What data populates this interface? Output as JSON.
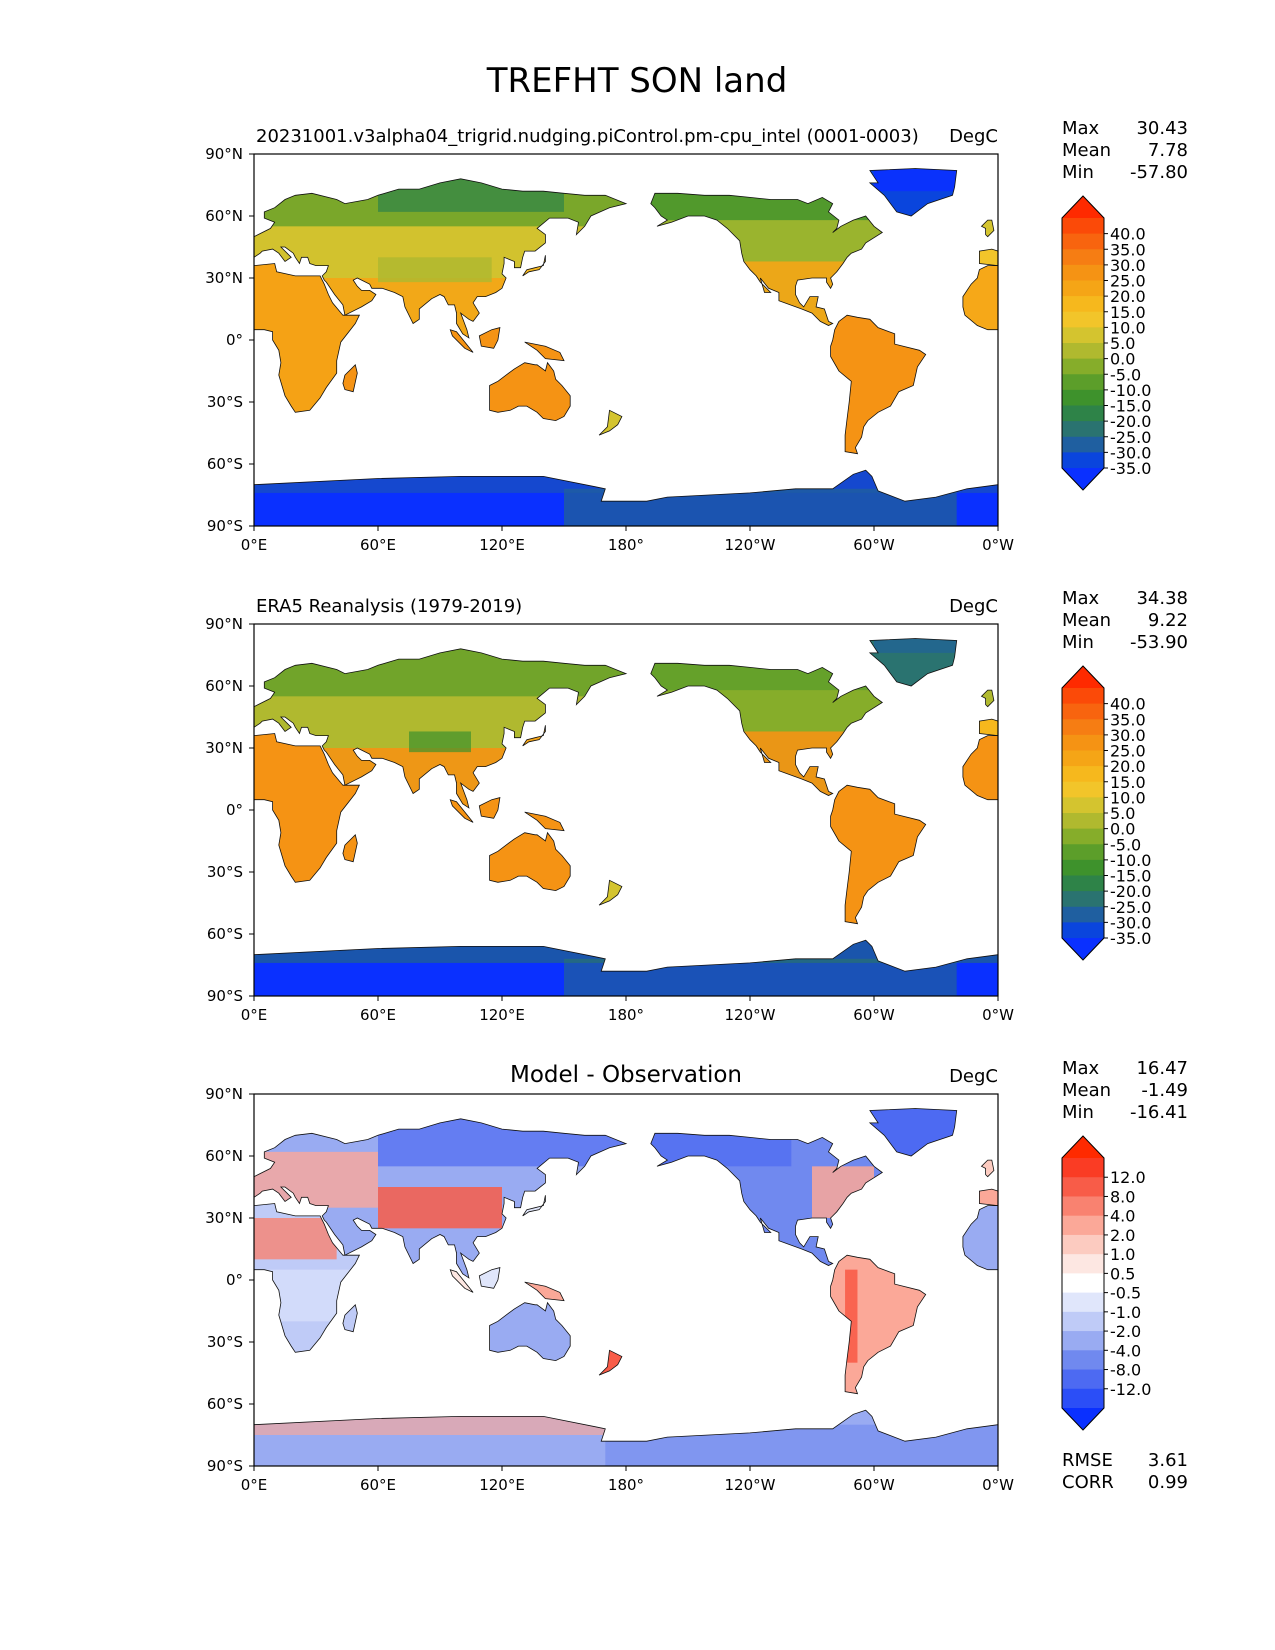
{
  "title": "TREFHT SON land",
  "lat_ticks": [
    "90°N",
    "60°N",
    "30°N",
    "0°",
    "30°S",
    "60°S",
    "90°S"
  ],
  "lon_ticks": [
    "0°E",
    "60°E",
    "120°E",
    "180°",
    "120°W",
    "60°W",
    "0°W"
  ],
  "panels": [
    {
      "id": "model",
      "title_left": "20231001.v3alpha04_trigrid.nudging.piControl.pm-cpu_intel (0001-0003)",
      "title_center": "",
      "units": "DegC",
      "stats": [
        {
          "label": "Max",
          "value": "30.43"
        },
        {
          "label": "Mean",
          "value": "7.78"
        },
        {
          "label": "Min",
          "value": "-57.80"
        }
      ],
      "colorbar_ticks": [
        "40.0",
        "35.0",
        "30.0",
        "25.0",
        "20.0",
        "15.0",
        "10.0",
        "5.0",
        "0.0",
        "-5.0",
        "-10.0",
        "-15.0",
        "-20.0",
        "-25.0",
        "-30.0",
        "-35.0"
      ],
      "colorbar_colors": [
        "#ff2a00",
        "#fb4a08",
        "#f8640f",
        "#f67d13",
        "#f59314",
        "#f5a516",
        "#f6b81d",
        "#f2c52a",
        "#d4c42f",
        "#b0b92f",
        "#86ad2a",
        "#5c9e2a",
        "#3e922c",
        "#2e8348",
        "#2a7370",
        "#1f5fa0",
        "#0a45dd",
        "#0a30ff"
      ]
    },
    {
      "id": "obs",
      "title_left": "ERA5 Reanalysis (1979-2019)",
      "title_center": "",
      "units": "DegC",
      "stats": [
        {
          "label": "Max",
          "value": "34.38"
        },
        {
          "label": "Mean",
          "value": "9.22"
        },
        {
          "label": "Min",
          "value": "-53.90"
        }
      ],
      "colorbar_ticks": [
        "40.0",
        "35.0",
        "30.0",
        "25.0",
        "20.0",
        "15.0",
        "10.0",
        "5.0",
        "0.0",
        "-5.0",
        "-10.0",
        "-15.0",
        "-20.0",
        "-25.0",
        "-30.0",
        "-35.0"
      ],
      "colorbar_colors": [
        "#ff2a00",
        "#fb4a08",
        "#f8640f",
        "#f67d13",
        "#f59314",
        "#f5a516",
        "#f6b81d",
        "#f2c52a",
        "#d4c42f",
        "#b0b92f",
        "#86ad2a",
        "#5c9e2a",
        "#3e922c",
        "#2e8348",
        "#2a7370",
        "#1f5fa0",
        "#0a45dd",
        "#0a30ff"
      ]
    },
    {
      "id": "diff",
      "title_left": "",
      "title_center": "Model - Observation",
      "units": "DegC",
      "stats": [
        {
          "label": "Max",
          "value": "16.47"
        },
        {
          "label": "Mean",
          "value": "-1.49"
        },
        {
          "label": "Min",
          "value": "-16.41"
        }
      ],
      "extra_stats": [
        {
          "label": "RMSE",
          "value": "3.61"
        },
        {
          "label": "CORR",
          "value": "0.99"
        }
      ],
      "colorbar_ticks": [
        "12.0",
        "8.0",
        "4.0",
        "2.0",
        "1.0",
        "0.5",
        "-0.5",
        "-1.0",
        "-2.0",
        "-4.0",
        "-8.0",
        "-12.0"
      ],
      "colorbar_colors": [
        "#ff2a00",
        "#fa3c24",
        "#f85c48",
        "#f98270",
        "#fba898",
        "#fccbc0",
        "#fde7e2",
        "#ffffff",
        "#e0e6fb",
        "#bfcbf7",
        "#99abf2",
        "#7089ef",
        "#4d6af2",
        "#2b4ef7",
        "#0a30ff"
      ]
    }
  ]
}
